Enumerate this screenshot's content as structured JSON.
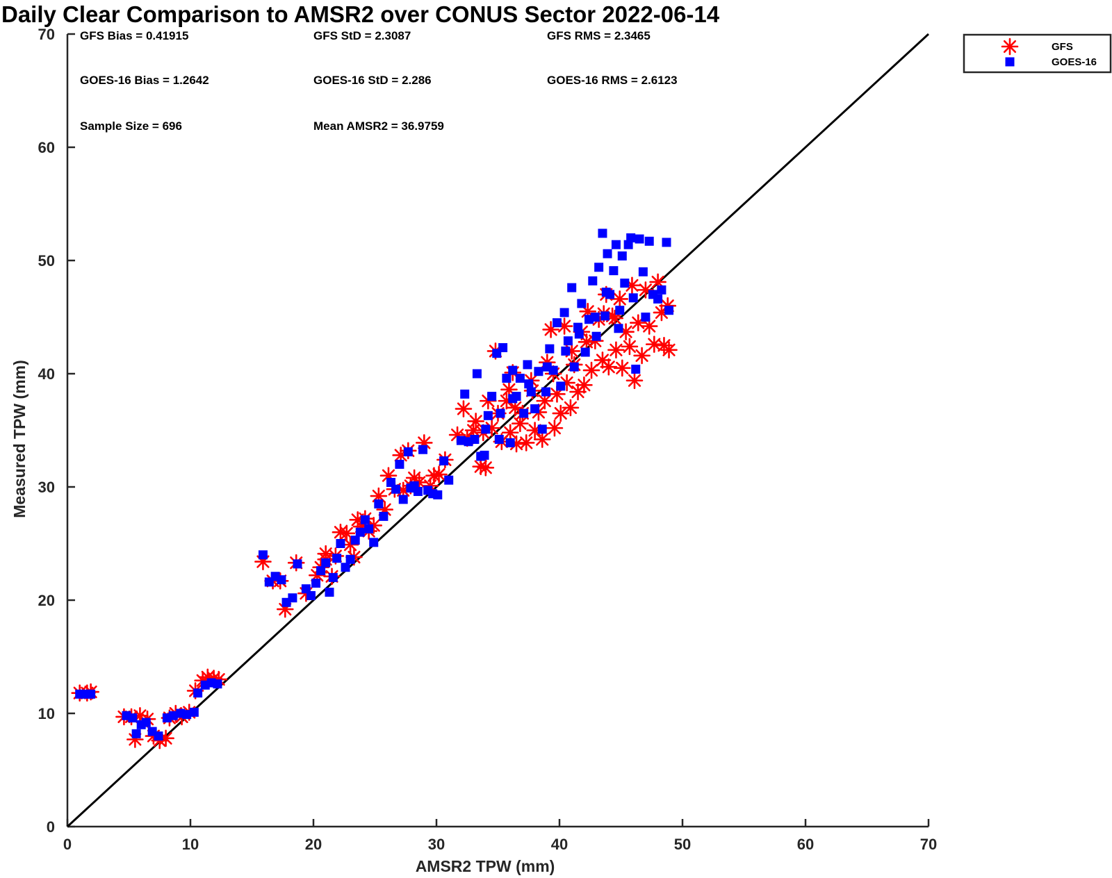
{
  "chart_data": {
    "type": "scatter",
    "title": "Daily Clear Comparison to AMSR2 over CONUS Sector 2022-06-14",
    "xlabel": "AMSR2 TPW (mm)",
    "ylabel": "Measured TPW (mm)",
    "xlim": [
      0,
      70
    ],
    "ylim": [
      0,
      70
    ],
    "xticks": [
      "0",
      "10",
      "20",
      "30",
      "40",
      "50",
      "60",
      "70"
    ],
    "yticks": [
      "0",
      "10",
      "20",
      "30",
      "40",
      "50",
      "60",
      "70"
    ],
    "reference_line": "one-to-one",
    "grid": false,
    "legend_position": "outside-top-right",
    "stats": [
      [
        "GFS Bias = 0.41915",
        "GFS StD = 2.3087",
        "GFS RMS = 2.3465"
      ],
      [
        "GOES-16 Bias = 1.2642",
        "GOES-16 StD = 2.286",
        "GOES-16 RMS = 2.6123"
      ],
      [
        "Sample Size = 696",
        "Mean AMSR2 = 36.9759"
      ]
    ],
    "series": [
      {
        "name": "GFS",
        "marker": "asterisk",
        "color": "#ff0000",
        "points": [
          [
            1.0,
            11.8
          ],
          [
            1.6,
            11.8
          ],
          [
            1.9,
            11.9
          ],
          [
            4.6,
            9.7
          ],
          [
            5.2,
            9.7
          ],
          [
            5.5,
            7.7
          ],
          [
            5.9,
            9.8
          ],
          [
            6.5,
            9.5
          ],
          [
            7.0,
            8.0
          ],
          [
            7.5,
            7.6
          ],
          [
            8.0,
            7.8
          ],
          [
            8.3,
            9.6
          ],
          [
            8.8,
            10.0
          ],
          [
            9.3,
            9.7
          ],
          [
            9.9,
            10.1
          ],
          [
            10.4,
            12.0
          ],
          [
            11.0,
            12.9
          ],
          [
            11.4,
            13.2
          ],
          [
            11.9,
            13.1
          ],
          [
            12.3,
            13.0
          ],
          [
            15.9,
            23.4
          ],
          [
            16.7,
            21.7
          ],
          [
            17.3,
            21.7
          ],
          [
            17.7,
            19.2
          ],
          [
            18.6,
            23.3
          ],
          [
            19.4,
            20.6
          ],
          [
            20.3,
            22.2
          ],
          [
            20.6,
            22.9
          ],
          [
            21.0,
            23.6
          ],
          [
            21.0,
            24.1
          ],
          [
            21.5,
            22.1
          ],
          [
            21.8,
            23.9
          ],
          [
            22.2,
            26.0
          ],
          [
            22.7,
            25.9
          ],
          [
            23.0,
            24.9
          ],
          [
            23.3,
            23.8
          ],
          [
            23.6,
            27.1
          ],
          [
            23.9,
            26.5
          ],
          [
            24.2,
            27.2
          ],
          [
            24.5,
            26.1
          ],
          [
            24.9,
            26.6
          ],
          [
            25.3,
            29.2
          ],
          [
            25.8,
            28.0
          ],
          [
            26.1,
            31.0
          ],
          [
            26.6,
            29.8
          ],
          [
            27.1,
            32.8
          ],
          [
            27.3,
            29.7
          ],
          [
            27.7,
            33.2
          ],
          [
            27.9,
            30.1
          ],
          [
            28.2,
            30.8
          ],
          [
            28.6,
            30.4
          ],
          [
            29.0,
            33.9
          ],
          [
            29.5,
            30.1
          ],
          [
            29.8,
            31.0
          ],
          [
            30.2,
            31.1
          ],
          [
            30.7,
            32.4
          ],
          [
            31.7,
            34.6
          ],
          [
            32.2,
            36.9
          ],
          [
            32.5,
            34.3
          ],
          [
            33.0,
            35.0
          ],
          [
            33.2,
            35.8
          ],
          [
            33.6,
            31.8
          ],
          [
            33.8,
            34.8
          ],
          [
            34.0,
            31.7
          ],
          [
            34.2,
            37.6
          ],
          [
            34.5,
            35.2
          ],
          [
            34.8,
            42.0
          ],
          [
            35.0,
            36.5
          ],
          [
            35.3,
            34.0
          ],
          [
            35.7,
            37.6
          ],
          [
            36.0,
            34.8
          ],
          [
            36.2,
            40.1
          ],
          [
            36.5,
            33.8
          ],
          [
            36.8,
            35.6
          ],
          [
            37.0,
            36.5
          ],
          [
            37.3,
            33.9
          ],
          [
            37.7,
            39.4
          ],
          [
            38.0,
            35.0
          ],
          [
            38.3,
            36.6
          ],
          [
            38.6,
            34.2
          ],
          [
            38.8,
            37.6
          ],
          [
            39.0,
            41.0
          ],
          [
            39.3,
            43.9
          ],
          [
            39.6,
            35.2
          ],
          [
            39.8,
            38.2
          ],
          [
            40.1,
            36.5
          ],
          [
            40.4,
            44.2
          ],
          [
            40.6,
            39.2
          ],
          [
            40.9,
            37.0
          ],
          [
            41.2,
            40.8
          ],
          [
            41.5,
            38.4
          ],
          [
            41.8,
            43.7
          ],
          [
            42.0,
            39.0
          ],
          [
            42.3,
            45.5
          ],
          [
            42.6,
            40.3
          ],
          [
            42.9,
            42.9
          ],
          [
            43.2,
            44.8
          ],
          [
            43.5,
            41.2
          ],
          [
            43.8,
            47.0
          ],
          [
            44.0,
            40.6
          ],
          [
            44.3,
            45.1
          ],
          [
            44.6,
            42.1
          ],
          [
            44.9,
            46.6
          ],
          [
            45.1,
            40.5
          ],
          [
            45.4,
            43.7
          ],
          [
            45.7,
            42.4
          ],
          [
            45.9,
            47.8
          ],
          [
            46.1,
            39.4
          ],
          [
            46.4,
            44.5
          ],
          [
            46.7,
            41.6
          ],
          [
            47.0,
            47.4
          ],
          [
            47.3,
            44.2
          ],
          [
            47.7,
            42.6
          ],
          [
            48.0,
            48.1
          ],
          [
            48.3,
            45.4
          ],
          [
            48.5,
            42.5
          ],
          [
            48.8,
            46.0
          ],
          [
            48.9,
            42.1
          ],
          [
            44.5,
            44.9
          ],
          [
            43.6,
            45.3
          ],
          [
            42.2,
            42.8
          ],
          [
            41.0,
            42.0
          ],
          [
            39.5,
            40.0
          ],
          [
            37.8,
            38.5
          ],
          [
            36.4,
            37.0
          ],
          [
            35.9,
            38.6
          ]
        ]
      },
      {
        "name": "GOES-16",
        "marker": "square",
        "color": "#0000ff",
        "points": [
          [
            1.0,
            11.7
          ],
          [
            1.5,
            11.7
          ],
          [
            1.9,
            11.7
          ],
          [
            4.8,
            9.8
          ],
          [
            5.3,
            9.6
          ],
          [
            5.6,
            8.2
          ],
          [
            6.0,
            9.0
          ],
          [
            6.4,
            9.2
          ],
          [
            6.9,
            8.4
          ],
          [
            7.4,
            8.0
          ],
          [
            8.1,
            9.6
          ],
          [
            8.6,
            9.8
          ],
          [
            9.2,
            10.0
          ],
          [
            9.7,
            9.9
          ],
          [
            10.3,
            10.1
          ],
          [
            10.6,
            11.8
          ],
          [
            11.2,
            12.5
          ],
          [
            11.7,
            12.7
          ],
          [
            12.2,
            12.6
          ],
          [
            15.9,
            24.0
          ],
          [
            16.4,
            21.6
          ],
          [
            16.9,
            22.1
          ],
          [
            17.4,
            21.8
          ],
          [
            17.8,
            19.8
          ],
          [
            18.3,
            20.2
          ],
          [
            18.7,
            23.2
          ],
          [
            19.4,
            21.0
          ],
          [
            19.8,
            20.4
          ],
          [
            20.2,
            21.5
          ],
          [
            20.6,
            22.6
          ],
          [
            21.0,
            23.3
          ],
          [
            21.3,
            20.7
          ],
          [
            21.6,
            22.0
          ],
          [
            21.9,
            23.7
          ],
          [
            22.2,
            25.0
          ],
          [
            22.6,
            22.9
          ],
          [
            23.0,
            23.6
          ],
          [
            23.4,
            25.3
          ],
          [
            23.8,
            26.0
          ],
          [
            24.2,
            27.1
          ],
          [
            24.5,
            26.3
          ],
          [
            24.9,
            25.1
          ],
          [
            25.3,
            28.5
          ],
          [
            25.7,
            27.4
          ],
          [
            26.3,
            30.4
          ],
          [
            26.7,
            29.8
          ],
          [
            27.0,
            32.0
          ],
          [
            27.3,
            28.9
          ],
          [
            27.7,
            33.1
          ],
          [
            27.9,
            29.9
          ],
          [
            28.2,
            30.1
          ],
          [
            28.5,
            29.6
          ],
          [
            28.9,
            33.3
          ],
          [
            29.3,
            29.7
          ],
          [
            29.7,
            29.4
          ],
          [
            30.1,
            29.3
          ],
          [
            30.6,
            32.3
          ],
          [
            31.0,
            30.6
          ],
          [
            32.0,
            34.1
          ],
          [
            32.3,
            38.2
          ],
          [
            32.6,
            34.0
          ],
          [
            33.1,
            34.2
          ],
          [
            33.3,
            40.0
          ],
          [
            33.6,
            32.7
          ],
          [
            33.9,
            32.8
          ],
          [
            34.2,
            36.3
          ],
          [
            34.5,
            38.0
          ],
          [
            34.9,
            41.8
          ],
          [
            35.1,
            34.2
          ],
          [
            35.4,
            42.3
          ],
          [
            35.7,
            39.6
          ],
          [
            36.0,
            33.9
          ],
          [
            36.2,
            40.3
          ],
          [
            36.5,
            38.0
          ],
          [
            36.8,
            39.6
          ],
          [
            37.1,
            36.5
          ],
          [
            37.4,
            40.8
          ],
          [
            37.7,
            38.4
          ],
          [
            38.0,
            36.9
          ],
          [
            38.3,
            40.2
          ],
          [
            38.6,
            35.1
          ],
          [
            38.9,
            38.4
          ],
          [
            39.2,
            42.2
          ],
          [
            39.5,
            40.3
          ],
          [
            39.8,
            44.5
          ],
          [
            40.1,
            38.9
          ],
          [
            40.4,
            45.4
          ],
          [
            40.7,
            42.9
          ],
          [
            41.0,
            47.6
          ],
          [
            41.2,
            40.6
          ],
          [
            41.5,
            44.1
          ],
          [
            41.8,
            46.2
          ],
          [
            42.1,
            41.9
          ],
          [
            42.4,
            44.8
          ],
          [
            42.7,
            48.2
          ],
          [
            43.0,
            43.3
          ],
          [
            43.2,
            49.4
          ],
          [
            43.5,
            52.4
          ],
          [
            43.7,
            45.1
          ],
          [
            43.9,
            50.6
          ],
          [
            44.1,
            47.0
          ],
          [
            44.4,
            49.1
          ],
          [
            44.6,
            51.4
          ],
          [
            44.8,
            44.0
          ],
          [
            45.1,
            50.4
          ],
          [
            45.3,
            48.0
          ],
          [
            45.6,
            51.4
          ],
          [
            45.8,
            52.0
          ],
          [
            46.0,
            46.7
          ],
          [
            46.2,
            40.4
          ],
          [
            46.5,
            51.9
          ],
          [
            46.8,
            49.0
          ],
          [
            47.0,
            45.0
          ],
          [
            47.3,
            51.7
          ],
          [
            47.6,
            47.0
          ],
          [
            48.0,
            46.6
          ],
          [
            48.3,
            47.4
          ],
          [
            48.7,
            51.6
          ],
          [
            48.9,
            45.6
          ],
          [
            44.9,
            45.6
          ],
          [
            43.8,
            47.2
          ],
          [
            42.9,
            45.0
          ],
          [
            41.6,
            43.5
          ],
          [
            40.5,
            42.0
          ],
          [
            39.0,
            40.6
          ],
          [
            37.5,
            39.1
          ],
          [
            36.2,
            37.8
          ],
          [
            35.2,
            36.5
          ],
          [
            34.0,
            35.1
          ]
        ]
      }
    ]
  }
}
